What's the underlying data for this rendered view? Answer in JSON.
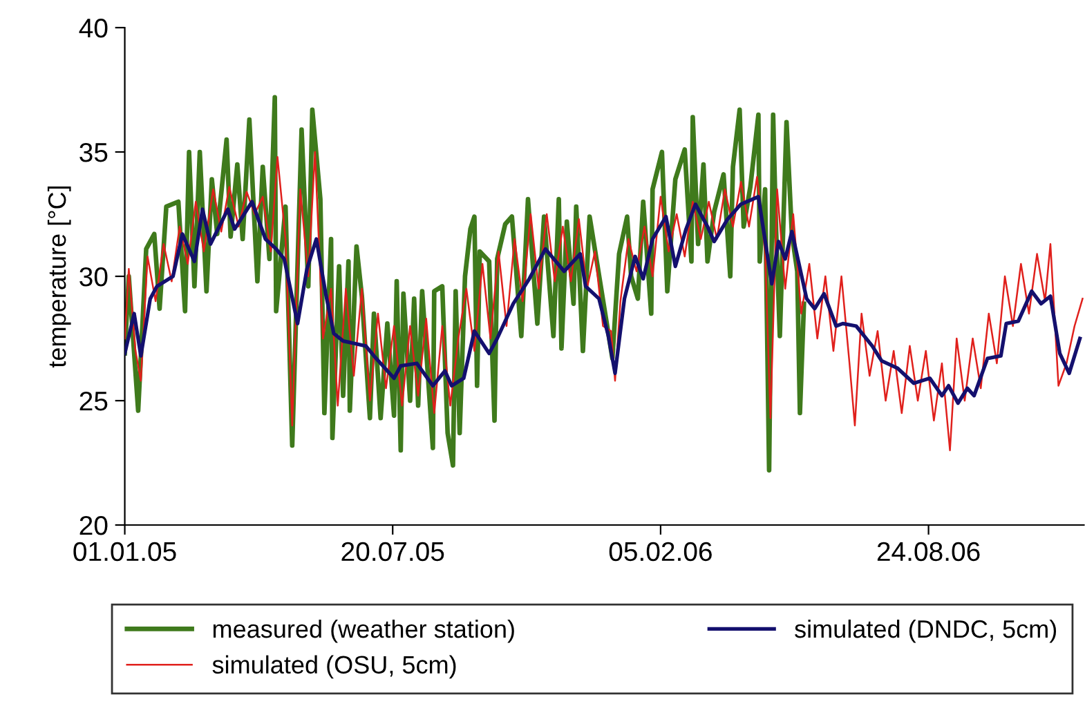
{
  "chart_data": {
    "type": "line",
    "ylabel": "temperature [°C]",
    "ylim": [
      20,
      40
    ],
    "yticks": [
      20,
      25,
      30,
      35,
      40
    ],
    "xlim": [
      "2005-01-01",
      "2006-12-18"
    ],
    "xticks": [
      {
        "value": "2005-01-01",
        "label": "01.01.05"
      },
      {
        "value": "2005-07-20",
        "label": "20.07.05"
      },
      {
        "value": "2006-02-05",
        "label": "05.02.06"
      },
      {
        "value": "2006-08-24",
        "label": "24.08.06"
      }
    ],
    "grid": false,
    "legend": "bottom",
    "marker": "none",
    "line_style": "solid",
    "series": [
      {
        "name": "measured (weather station)",
        "color": "#3f7a1c",
        "x": [
          "2005-01-01",
          "2005-01-04",
          "2005-01-11",
          "2005-01-17",
          "2005-01-23",
          "2005-01-27",
          "2005-02-01",
          "2005-02-10",
          "2005-02-15",
          "2005-02-18",
          "2005-02-22",
          "2005-02-26",
          "2005-03-03",
          "2005-03-07",
          "2005-03-11",
          "2005-03-18",
          "2005-03-21",
          "2005-03-26",
          "2005-03-30",
          "2005-04-04",
          "2005-04-10",
          "2005-04-14",
          "2005-04-19",
          "2005-04-23",
          "2005-04-24",
          "2005-05-01",
          "2005-05-06",
          "2005-05-13",
          "2005-05-18",
          "2005-05-21",
          "2005-05-27",
          "2005-05-30",
          "2005-06-04",
          "2005-06-05",
          "2005-06-10",
          "2005-06-13",
          "2005-06-17",
          "2005-06-18",
          "2005-06-23",
          "2005-06-27",
          "2005-07-03",
          "2005-07-06",
          "2005-07-11",
          "2005-07-16",
          "2005-07-21",
          "2005-07-23",
          "2005-07-26",
          "2005-07-28",
          "2005-08-02",
          "2005-08-05",
          "2005-08-08",
          "2005-08-11",
          "2005-08-19",
          "2005-08-20",
          "2005-08-26",
          "2005-08-30",
          "2005-09-03",
          "2005-09-05",
          "2005-09-08",
          "2005-09-12",
          "2005-09-16",
          "2005-09-19",
          "2005-09-21",
          "2005-09-23",
          "2005-09-30",
          "2005-10-04",
          "2005-10-06",
          "2005-10-12",
          "2005-10-17",
          "2005-10-24",
          "2005-10-29",
          "2005-11-05",
          "2005-11-10",
          "2005-11-17",
          "2005-11-21",
          "2005-11-23",
          "2005-11-27",
          "2005-12-02",
          "2005-12-04",
          "2005-12-09",
          "2005-12-14",
          "2005-12-31",
          "2006-01-05",
          "2006-01-11",
          "2006-01-14",
          "2006-01-19",
          "2006-01-23",
          "2006-01-29",
          "2006-01-30",
          "2006-02-06",
          "2006-02-10",
          "2006-02-16",
          "2006-02-23",
          "2006-02-28",
          "2006-03-01",
          "2006-03-05",
          "2006-03-09",
          "2006-03-12",
          "2006-03-17",
          "2006-03-24",
          "2006-03-29",
          "2006-03-31",
          "2006-04-05",
          "2006-04-08",
          "2006-04-13",
          "2006-04-19",
          "2006-04-20",
          "2006-04-24",
          "2006-04-27",
          "2006-04-30",
          "2006-05-02",
          "2006-05-05",
          "2006-05-10",
          "2006-05-14",
          "2006-05-18",
          "2006-05-20",
          "2006-05-23"
        ],
        "values": [
          26.9,
          30.0,
          24.6,
          31.1,
          31.7,
          28.7,
          32.8,
          33.0,
          28.6,
          35.0,
          29.6,
          35.0,
          29.4,
          33.9,
          31.7,
          35.5,
          31.6,
          34.5,
          31.5,
          36.3,
          29.8,
          34.4,
          30.7,
          37.2,
          28.6,
          32.8,
          23.2,
          35.9,
          29.6,
          36.7,
          33.1,
          24.5,
          31.5,
          23.5,
          30.4,
          25.2,
          30.6,
          24.6,
          31.2,
          29.2,
          24.3,
          28.5,
          24.3,
          28.1,
          24.4,
          29.8,
          23.0,
          29.3,
          25.0,
          29.1,
          24.8,
          29.4,
          23.1,
          29.4,
          29.6,
          23.7,
          22.4,
          29.4,
          23.7,
          30.0,
          31.9,
          32.4,
          25.6,
          31.0,
          30.6,
          24.2,
          30.7,
          32.1,
          32.4,
          27.6,
          33.1,
          28.1,
          32.4,
          27.6,
          33.1,
          27.1,
          32.2,
          28.9,
          32.8,
          27.0,
          32.4,
          26.7,
          30.9,
          32.4,
          30.0,
          29.1,
          33.0,
          28.5,
          33.5,
          35.0,
          29.4,
          33.9,
          35.1,
          30.6,
          36.4,
          31.3,
          34.5,
          30.6,
          32.6,
          34.1,
          30.0,
          34.4,
          36.7,
          32.0,
          33.6,
          36.5,
          30.6,
          33.5,
          22.2,
          36.5,
          32.2,
          27.6,
          36.2,
          31.7,
          30.2,
          24.5,
          28.9
        ]
      },
      {
        "name": "simulated (OSU, 5cm)",
        "color": "#e0201c",
        "x": [
          "2005-01-01",
          "2005-01-04",
          "2005-01-09",
          "2005-01-13",
          "2005-01-18",
          "2005-01-24",
          "2005-01-30",
          "2005-02-05",
          "2005-02-11",
          "2005-02-17",
          "2005-02-23",
          "2005-03-01",
          "2005-03-08",
          "2005-03-14",
          "2005-03-20",
          "2005-03-27",
          "2005-04-02",
          "2005-04-08",
          "2005-04-14",
          "2005-04-20",
          "2005-04-25",
          "2005-05-01",
          "2005-05-06",
          "2005-05-12",
          "2005-05-18",
          "2005-05-23",
          "2005-05-29",
          "2005-06-04",
          "2005-06-09",
          "2005-06-15",
          "2005-06-21",
          "2005-06-27",
          "2005-07-03",
          "2005-07-09",
          "2005-07-15",
          "2005-07-21",
          "2005-07-27",
          "2005-08-02",
          "2005-08-08",
          "2005-08-14",
          "2005-08-20",
          "2005-08-26",
          "2005-09-01",
          "2005-09-07",
          "2005-09-13",
          "2005-09-19",
          "2005-09-25",
          "2005-10-01",
          "2005-10-07",
          "2005-10-13",
          "2005-10-19",
          "2005-10-25",
          "2005-10-31",
          "2005-11-06",
          "2005-11-12",
          "2005-11-18",
          "2005-11-24",
          "2005-11-30",
          "2005-12-06",
          "2005-12-12",
          "2005-12-18",
          "2005-12-24",
          "2005-12-30",
          "2006-01-02",
          "2006-01-06",
          "2006-01-12",
          "2006-01-18",
          "2006-01-24",
          "2006-01-30",
          "2006-02-05",
          "2006-02-11",
          "2006-02-17",
          "2006-02-23",
          "2006-03-01",
          "2006-03-07",
          "2006-03-13",
          "2006-03-19",
          "2006-03-25",
          "2006-03-31",
          "2006-04-06",
          "2006-04-12",
          "2006-04-18",
          "2006-04-24",
          "2006-04-28",
          "2006-05-03",
          "2006-05-09",
          "2006-05-15",
          "2006-05-21",
          "2006-05-27",
          "2006-06-02",
          "2006-06-08",
          "2006-06-14",
          "2006-06-20",
          "2006-06-26",
          "2006-06-30",
          "2006-07-05",
          "2006-07-11",
          "2006-07-17",
          "2006-07-23",
          "2006-07-29",
          "2006-08-04",
          "2006-08-10",
          "2006-08-16",
          "2006-08-22",
          "2006-08-28",
          "2006-09-03",
          "2006-09-09",
          "2006-09-14",
          "2006-09-20",
          "2006-09-26",
          "2006-10-02",
          "2006-10-08",
          "2006-10-14",
          "2006-10-20",
          "2006-10-26",
          "2006-11-01",
          "2006-11-07",
          "2006-11-13",
          "2006-11-19",
          "2006-11-23",
          "2006-11-29",
          "2006-12-05",
          "2006-12-11",
          "2006-12-17"
        ],
        "values": [
          27.5,
          30.3,
          27.0,
          25.8,
          30.8,
          29.0,
          31.3,
          29.8,
          32.0,
          30.5,
          33.0,
          31.0,
          33.5,
          31.8,
          33.6,
          32.0,
          33.4,
          32.5,
          33.2,
          31.0,
          34.8,
          31.5,
          24.0,
          33.5,
          30.0,
          35.0,
          27.5,
          29.5,
          24.8,
          29.5,
          26.0,
          29.5,
          25.0,
          28.5,
          25.5,
          28.0,
          24.8,
          28.0,
          25.2,
          28.3,
          24.5,
          28.0,
          24.8,
          27.5,
          29.5,
          27.0,
          30.5,
          27.5,
          31.0,
          28.0,
          31.5,
          29.0,
          32.5,
          29.5,
          32.5,
          29.8,
          32.0,
          29.8,
          32.3,
          29.5,
          31.0,
          28.0,
          27.8,
          25.8,
          29.0,
          31.5,
          30.2,
          32.0,
          30.0,
          33.2,
          31.0,
          32.5,
          30.8,
          33.0,
          31.5,
          33.0,
          31.5,
          33.5,
          32.0,
          33.8,
          32.0,
          34.0,
          31.0,
          24.3,
          33.5,
          29.5,
          32.5,
          28.5,
          30.5,
          27.5,
          30.0,
          27.0,
          30.0,
          26.5,
          24.0,
          28.5,
          26.0,
          27.8,
          25.0,
          27.0,
          24.5,
          27.2,
          25.0,
          27.0,
          24.2,
          26.5,
          23.0,
          27.5,
          25.0,
          27.5,
          25.5,
          28.5,
          26.5,
          30.0,
          28.0,
          30.5,
          28.5,
          30.9,
          29.0,
          31.3,
          25.6,
          26.5,
          28.0,
          29.1
        ]
      },
      {
        "name": "simulated (DNDC, 5cm)",
        "color": "#14106e",
        "x": [
          "2005-01-01",
          "2005-01-08",
          "2005-01-13",
          "2005-01-20",
          "2005-01-25",
          "2005-02-06",
          "2005-02-13",
          "2005-02-22",
          "2005-02-28",
          "2005-03-06",
          "2005-03-19",
          "2005-03-24",
          "2005-04-06",
          "2005-04-16",
          "2005-04-24",
          "2005-04-30",
          "2005-05-10",
          "2005-05-17",
          "2005-05-24",
          "2005-05-31",
          "2005-06-06",
          "2005-06-13",
          "2005-06-30",
          "2005-07-06",
          "2005-07-21",
          "2005-07-26",
          "2005-08-07",
          "2005-08-19",
          "2005-08-28",
          "2005-09-02",
          "2005-09-11",
          "2005-09-19",
          "2005-09-30",
          "2005-10-06",
          "2005-10-18",
          "2005-10-30",
          "2005-11-11",
          "2005-11-25",
          "2005-12-07",
          "2005-12-11",
          "2005-12-21",
          "2005-12-28",
          "2006-01-02",
          "2006-01-09",
          "2006-01-17",
          "2006-01-23",
          "2006-01-30",
          "2006-02-09",
          "2006-02-16",
          "2006-02-24",
          "2006-03-03",
          "2006-03-12",
          "2006-03-17",
          "2006-03-27",
          "2006-04-06",
          "2006-04-19",
          "2006-04-29",
          "2006-05-04",
          "2006-05-09",
          "2006-05-14",
          "2006-05-25",
          "2006-05-31",
          "2006-06-07",
          "2006-06-16",
          "2006-06-21",
          "2006-07-01",
          "2006-07-13",
          "2006-07-20",
          "2006-08-01",
          "2006-08-13",
          "2006-08-25",
          "2006-09-03",
          "2006-09-08",
          "2006-09-15",
          "2006-09-22",
          "2006-09-27",
          "2006-10-07",
          "2006-10-17",
          "2006-10-21",
          "2006-10-30",
          "2006-11-09",
          "2006-11-16",
          "2006-11-23",
          "2006-11-30",
          "2006-12-07",
          "2006-12-15"
        ],
        "values": [
          26.9,
          28.5,
          26.8,
          29.1,
          29.6,
          30.0,
          31.7,
          30.6,
          32.7,
          31.3,
          32.7,
          31.9,
          33.0,
          31.5,
          31.1,
          30.7,
          28.1,
          30.3,
          31.5,
          29.3,
          27.7,
          27.4,
          27.2,
          26.8,
          25.9,
          26.4,
          26.5,
          25.6,
          26.2,
          25.6,
          25.9,
          27.8,
          26.9,
          27.5,
          28.9,
          29.9,
          31.1,
          30.2,
          30.9,
          29.6,
          29.1,
          27.6,
          26.1,
          29.1,
          30.8,
          29.9,
          31.5,
          32.4,
          30.4,
          31.9,
          32.9,
          32.0,
          31.4,
          32.3,
          32.9,
          33.2,
          29.7,
          31.4,
          30.7,
          31.8,
          29.1,
          28.7,
          29.3,
          28.0,
          28.1,
          28.0,
          27.2,
          26.6,
          26.3,
          25.7,
          25.9,
          25.2,
          25.6,
          24.9,
          25.5,
          25.2,
          26.7,
          26.8,
          28.1,
          28.2,
          29.4,
          28.9,
          29.2,
          26.9,
          26.1,
          27.5
        ]
      }
    ]
  }
}
